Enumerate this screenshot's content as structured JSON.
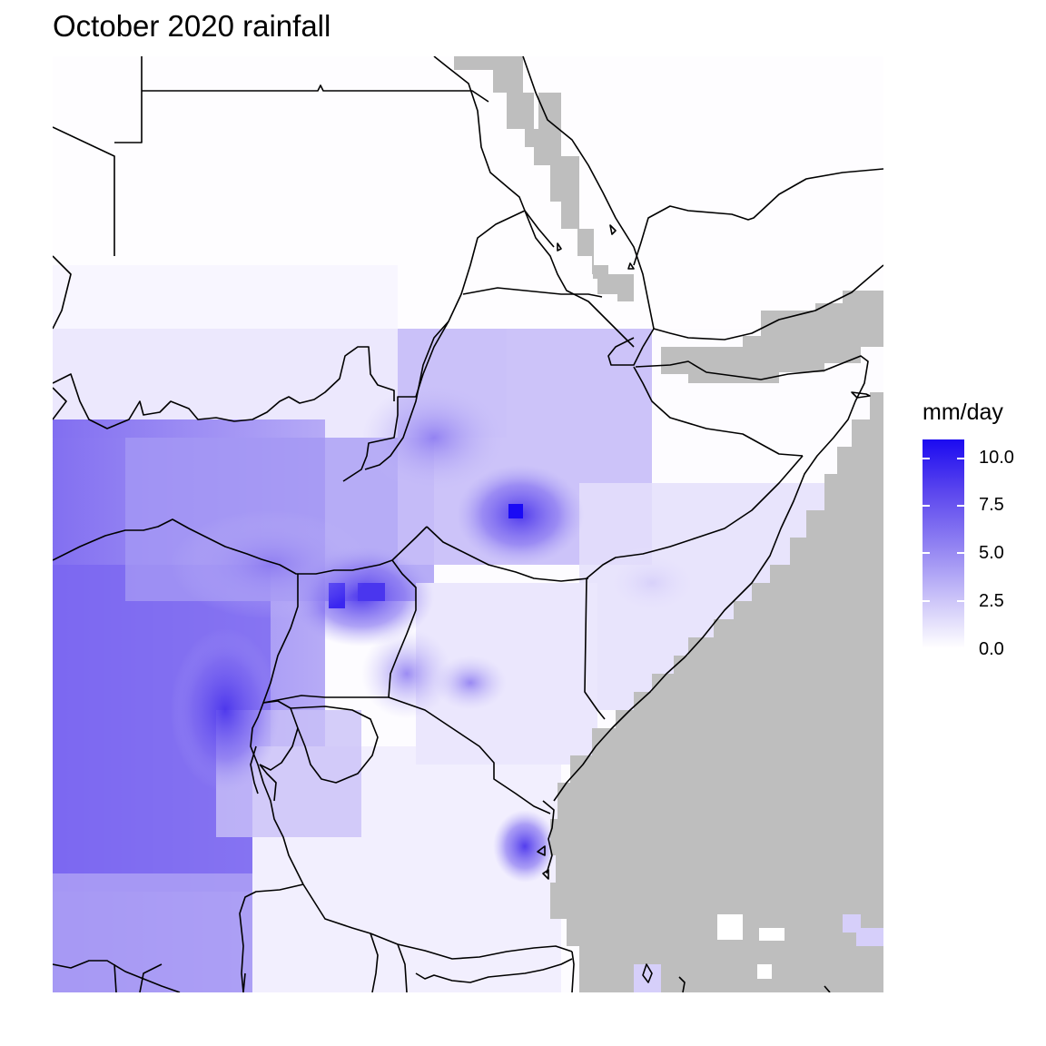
{
  "title": "October 2020 rainfall",
  "legend": {
    "title": "mm/day",
    "labels": [
      "10.0",
      "7.5",
      "5.0",
      "2.5",
      "0.0"
    ],
    "low_color": "#ffffff",
    "high_color": "#1a0af5",
    "missing_color": "#bebebe"
  },
  "map": {
    "region": "East Africa",
    "features": [
      "country-borders",
      "rainfall-raster",
      "ocean-missing-data"
    ]
  }
}
